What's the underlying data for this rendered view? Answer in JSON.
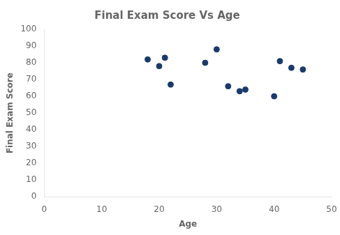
{
  "chart_data": {
    "type": "scatter",
    "title": "Final Exam Score Vs Age",
    "xlabel": "Age",
    "ylabel": "Final Exam Score",
    "x": [
      18,
      20,
      21,
      22,
      28,
      30,
      32,
      34,
      35,
      40,
      41,
      43,
      45
    ],
    "values": [
      82,
      78,
      83,
      67,
      80,
      88,
      66,
      63,
      64,
      60,
      81,
      77,
      76
    ],
    "color": "#1a3a6b",
    "xlim": [
      0,
      50
    ],
    "ylim": [
      0,
      100
    ],
    "xticks": [
      0,
      10,
      20,
      30,
      40,
      50
    ],
    "yticks": [
      0,
      10,
      20,
      30,
      40,
      50,
      60,
      70,
      80,
      90,
      100
    ],
    "grid": false
  }
}
